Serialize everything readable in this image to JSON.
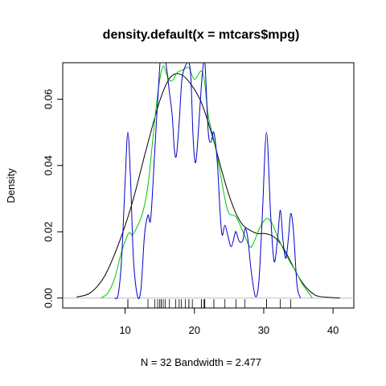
{
  "chart_data": {
    "type": "line",
    "title": "density.default(x = mtcars$mpg)",
    "xlabel": "N = 32   Bandwidth = 2.477",
    "ylabel": "Density",
    "xlim": [
      1.0,
      43.0
    ],
    "ylim": [
      -0.003,
      0.071
    ],
    "x_ticks": [
      10,
      20,
      30,
      40
    ],
    "x_tick_labels": [
      "10",
      "20",
      "30",
      "40"
    ],
    "y_ticks": [
      0.0,
      0.02,
      0.04,
      0.06
    ],
    "y_tick_labels": [
      "0.00",
      "0.02",
      "0.04",
      "0.06"
    ],
    "grid": false,
    "legend": "none",
    "colors": {
      "axis": "#000000",
      "zero_line": "#bebebe"
    },
    "rug": [
      10.4,
      10.4,
      13.3,
      14.3,
      14.7,
      15.0,
      15.2,
      15.2,
      15.5,
      15.8,
      16.4,
      17.3,
      17.8,
      18.1,
      18.7,
      19.2,
      19.2,
      19.7,
      21.0,
      21.0,
      21.4,
      21.4,
      21.5,
      22.8,
      22.8,
      24.4,
      26.0,
      27.3,
      30.4,
      30.4,
      32.4,
      33.9
    ],
    "series": [
      {
        "color": "#000000",
        "points": [
          [
            3.0,
            0.0003
          ],
          [
            5.0,
            0.0016
          ],
          [
            7.0,
            0.0065
          ],
          [
            9.0,
            0.016
          ],
          [
            11.0,
            0.0285
          ],
          [
            13.0,
            0.0445
          ],
          [
            15.0,
            0.0595
          ],
          [
            16.5,
            0.0665
          ],
          [
            18.0,
            0.0675
          ],
          [
            19.5,
            0.0645
          ],
          [
            21.0,
            0.059
          ],
          [
            22.5,
            0.0495
          ],
          [
            24.0,
            0.038
          ],
          [
            25.0,
            0.031
          ],
          [
            26.0,
            0.0255
          ],
          [
            27.0,
            0.022
          ],
          [
            28.0,
            0.0205
          ],
          [
            29.0,
            0.0195
          ],
          [
            30.0,
            0.0195
          ],
          [
            31.0,
            0.019
          ],
          [
            32.0,
            0.0175
          ],
          [
            33.0,
            0.0145
          ],
          [
            34.0,
            0.0105
          ],
          [
            35.0,
            0.0065
          ],
          [
            36.0,
            0.0035
          ],
          [
            37.0,
            0.0015
          ],
          [
            38.0,
            0.0005
          ],
          [
            41.0,
            0.0
          ]
        ]
      },
      {
        "color": "#00c800",
        "points": [
          [
            6.5,
            0.0
          ],
          [
            7.5,
            0.0015
          ],
          [
            8.5,
            0.006
          ],
          [
            9.5,
            0.014
          ],
          [
            10.5,
            0.0195
          ],
          [
            11.0,
            0.019
          ],
          [
            11.5,
            0.0205
          ],
          [
            12.5,
            0.0255
          ],
          [
            13.3,
            0.034
          ],
          [
            14.0,
            0.048
          ],
          [
            14.5,
            0.058
          ],
          [
            15.0,
            0.066
          ],
          [
            15.5,
            0.07
          ],
          [
            16.0,
            0.0675
          ],
          [
            16.5,
            0.0655
          ],
          [
            17.0,
            0.066
          ],
          [
            17.5,
            0.068
          ],
          [
            18.5,
            0.069
          ],
          [
            19.2,
            0.0695
          ],
          [
            20.0,
            0.066
          ],
          [
            21.0,
            0.0685
          ],
          [
            21.5,
            0.0645
          ],
          [
            22.0,
            0.055
          ],
          [
            23.0,
            0.046
          ],
          [
            24.0,
            0.0345
          ],
          [
            24.5,
            0.029
          ],
          [
            25.0,
            0.0255
          ],
          [
            26.0,
            0.0245
          ],
          [
            27.0,
            0.02
          ],
          [
            28.0,
            0.0155
          ],
          [
            28.5,
            0.0165
          ],
          [
            29.5,
            0.0215
          ],
          [
            30.4,
            0.024
          ],
          [
            31.2,
            0.0225
          ],
          [
            32.0,
            0.0185
          ],
          [
            33.0,
            0.014
          ],
          [
            33.9,
            0.0105
          ],
          [
            34.5,
            0.0085
          ],
          [
            35.5,
            0.0045
          ],
          [
            36.5,
            0.0015
          ],
          [
            37.0,
            0.0
          ]
        ]
      },
      {
        "color": "#0000c8",
        "points": [
          [
            8.5,
            0.0
          ],
          [
            9.0,
            0.001
          ],
          [
            9.5,
            0.012
          ],
          [
            10.0,
            0.035
          ],
          [
            10.4,
            0.05
          ],
          [
            10.8,
            0.035
          ],
          [
            11.2,
            0.012
          ],
          [
            11.8,
            0.0005
          ],
          [
            12.3,
            0.003
          ],
          [
            12.8,
            0.019
          ],
          [
            13.3,
            0.025
          ],
          [
            13.7,
            0.024
          ],
          [
            14.3,
            0.045
          ],
          [
            15.0,
            0.07
          ],
          [
            15.3,
            0.073
          ],
          [
            15.8,
            0.072
          ],
          [
            16.4,
            0.062
          ],
          [
            16.8,
            0.055
          ],
          [
            17.1,
            0.045
          ],
          [
            17.4,
            0.043
          ],
          [
            17.8,
            0.053
          ],
          [
            18.2,
            0.066
          ],
          [
            18.7,
            0.07
          ],
          [
            19.2,
            0.071
          ],
          [
            19.5,
            0.066
          ],
          [
            19.8,
            0.049
          ],
          [
            20.1,
            0.041
          ],
          [
            20.4,
            0.045
          ],
          [
            21.0,
            0.064
          ],
          [
            21.4,
            0.072
          ],
          [
            21.6,
            0.068
          ],
          [
            22.0,
            0.05
          ],
          [
            22.4,
            0.047
          ],
          [
            22.8,
            0.05
          ],
          [
            23.3,
            0.041
          ],
          [
            23.7,
            0.026
          ],
          [
            24.0,
            0.019
          ],
          [
            24.4,
            0.022
          ],
          [
            24.8,
            0.019
          ],
          [
            25.3,
            0.0155
          ],
          [
            25.8,
            0.019
          ],
          [
            26.0,
            0.02
          ],
          [
            26.5,
            0.017
          ],
          [
            27.0,
            0.0175
          ],
          [
            27.3,
            0.021
          ],
          [
            27.7,
            0.018
          ],
          [
            28.2,
            0.008
          ],
          [
            28.8,
            0.0005
          ],
          [
            29.3,
            0.005
          ],
          [
            29.8,
            0.025
          ],
          [
            30.4,
            0.05
          ],
          [
            31.0,
            0.025
          ],
          [
            31.5,
            0.011
          ],
          [
            32.0,
            0.018
          ],
          [
            32.4,
            0.0265
          ],
          [
            32.8,
            0.017
          ],
          [
            33.2,
            0.012
          ],
          [
            33.6,
            0.019
          ],
          [
            33.9,
            0.0255
          ],
          [
            34.3,
            0.02
          ],
          [
            34.8,
            0.004
          ],
          [
            35.3,
            0.0
          ]
        ]
      }
    ]
  }
}
